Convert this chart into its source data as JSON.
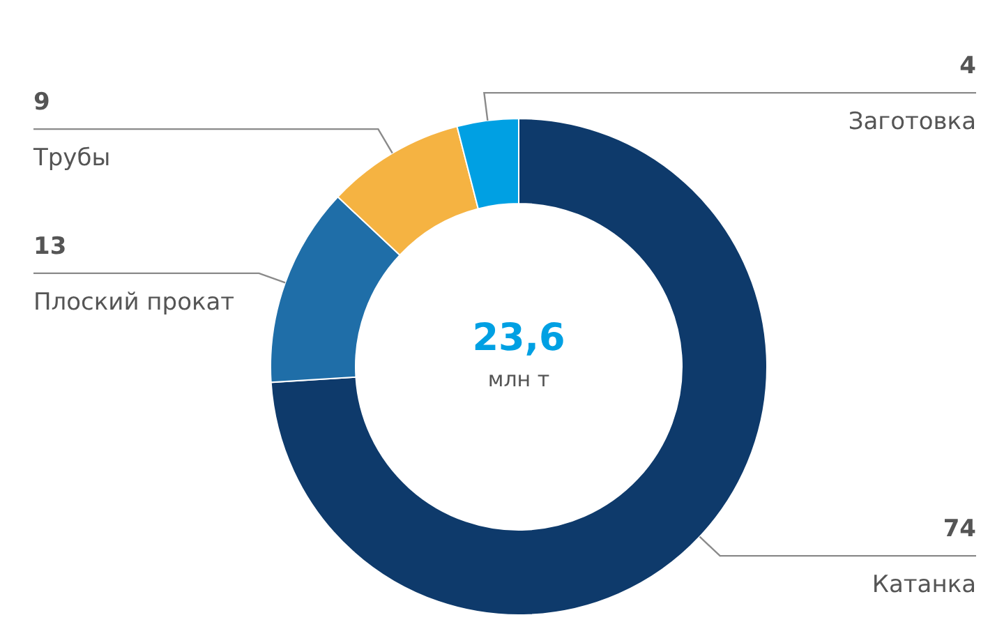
{
  "chart_data": {
    "type": "donut",
    "categories": [
      "Катанка",
      "Плоский прокат",
      "Трубы",
      "Заготовка"
    ],
    "values": [
      74,
      13,
      9,
      4
    ],
    "colors": [
      "#0e3a6b",
      "#1f6ea8",
      "#f5b342",
      "#00a0e3"
    ],
    "data_labels": true,
    "legend": false,
    "annotations": [
      "23,6",
      "млн т"
    ]
  }
}
